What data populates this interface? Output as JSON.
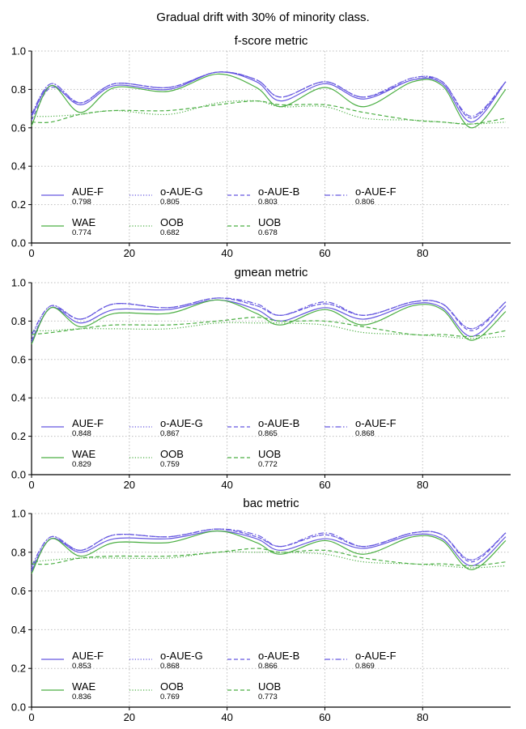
{
  "figure": {
    "suptitle": "Gradual drift with 30% of minority class."
  },
  "colors": {
    "aue": "#6658e0",
    "green": "#4caf44",
    "grid": "#bdbdbd"
  },
  "chart_data": [
    {
      "type": "line",
      "title": "f-score metric",
      "xlabel": "",
      "ylabel": "",
      "xlim": [
        0,
        98
      ],
      "ylim": [
        0,
        1
      ],
      "x_ticks": [
        "0",
        "20",
        "40",
        "60",
        "80"
      ],
      "y_ticks": [
        "0.0",
        "0.2",
        "0.4",
        "0.6",
        "0.8",
        "1.0"
      ],
      "grid": true,
      "legend_position": "lower-left",
      "x": [
        0,
        4,
        10,
        17,
        28,
        38,
        46,
        51,
        60,
        68,
        78,
        84,
        90,
        97
      ],
      "series": [
        {
          "name": "AUE-F",
          "score": "0.798",
          "color": "#6658e0",
          "dash": "solid",
          "values": [
            0.66,
            0.82,
            0.72,
            0.82,
            0.8,
            0.89,
            0.84,
            0.74,
            0.83,
            0.75,
            0.85,
            0.83,
            0.63,
            0.84
          ]
        },
        {
          "name": "o-AUE-G",
          "score": "0.805",
          "color": "#6658e0",
          "dash": "dotted",
          "values": [
            0.67,
            0.83,
            0.73,
            0.83,
            0.81,
            0.89,
            0.85,
            0.76,
            0.84,
            0.76,
            0.86,
            0.84,
            0.65,
            0.84
          ]
        },
        {
          "name": "o-AUE-B",
          "score": "0.803",
          "color": "#6658e0",
          "dash": "dashed",
          "values": [
            0.64,
            0.81,
            0.73,
            0.83,
            0.81,
            0.89,
            0.85,
            0.76,
            0.84,
            0.76,
            0.85,
            0.84,
            0.65,
            0.84
          ]
        },
        {
          "name": "o-AUE-F",
          "score": "0.806",
          "color": "#6658e0",
          "dash": "dashdot",
          "values": [
            0.67,
            0.83,
            0.73,
            0.83,
            0.81,
            0.89,
            0.85,
            0.76,
            0.84,
            0.76,
            0.86,
            0.84,
            0.66,
            0.84
          ]
        },
        {
          "name": "WAE",
          "score": "0.774",
          "color": "#4caf44",
          "dash": "solid",
          "values": [
            0.61,
            0.82,
            0.68,
            0.81,
            0.79,
            0.88,
            0.81,
            0.71,
            0.81,
            0.71,
            0.84,
            0.82,
            0.6,
            0.8
          ]
        },
        {
          "name": "OOB",
          "score": "0.682",
          "color": "#4caf44",
          "dash": "dotted",
          "values": [
            0.66,
            0.66,
            0.67,
            0.69,
            0.67,
            0.73,
            0.74,
            0.71,
            0.71,
            0.65,
            0.64,
            0.63,
            0.62,
            0.63
          ]
        },
        {
          "name": "UOB",
          "score": "0.678",
          "color": "#4caf44",
          "dash": "dashed",
          "values": [
            0.63,
            0.63,
            0.67,
            0.69,
            0.69,
            0.72,
            0.74,
            0.72,
            0.72,
            0.68,
            0.64,
            0.63,
            0.62,
            0.65
          ]
        }
      ]
    },
    {
      "type": "line",
      "title": "gmean metric",
      "xlabel": "",
      "ylabel": "",
      "xlim": [
        0,
        98
      ],
      "ylim": [
        0,
        1
      ],
      "x_ticks": [
        "0",
        "20",
        "40",
        "60",
        "80"
      ],
      "y_ticks": [
        "0.0",
        "0.2",
        "0.4",
        "0.6",
        "0.8",
        "1.0"
      ],
      "grid": true,
      "legend_position": "lower-left",
      "x": [
        0,
        4,
        10,
        17,
        28,
        38,
        46,
        51,
        60,
        68,
        78,
        84,
        90,
        97
      ],
      "series": [
        {
          "name": "AUE-F",
          "score": "0.848",
          "color": "#6658e0",
          "dash": "solid",
          "values": [
            0.69,
            0.87,
            0.79,
            0.86,
            0.86,
            0.91,
            0.86,
            0.8,
            0.87,
            0.81,
            0.89,
            0.87,
            0.72,
            0.88
          ]
        },
        {
          "name": "o-AUE-G",
          "score": "0.867",
          "color": "#6658e0",
          "dash": "dotted",
          "values": [
            0.72,
            0.88,
            0.81,
            0.89,
            0.87,
            0.92,
            0.88,
            0.83,
            0.89,
            0.83,
            0.9,
            0.89,
            0.76,
            0.9
          ]
        },
        {
          "name": "o-AUE-B",
          "score": "0.865",
          "color": "#6658e0",
          "dash": "dashed",
          "values": [
            0.7,
            0.87,
            0.81,
            0.89,
            0.87,
            0.92,
            0.88,
            0.83,
            0.89,
            0.83,
            0.9,
            0.89,
            0.75,
            0.9
          ]
        },
        {
          "name": "o-AUE-F",
          "score": "0.868",
          "color": "#6658e0",
          "dash": "dashdot",
          "values": [
            0.73,
            0.88,
            0.81,
            0.89,
            0.87,
            0.92,
            0.89,
            0.83,
            0.9,
            0.83,
            0.9,
            0.89,
            0.76,
            0.9
          ]
        },
        {
          "name": "WAE",
          "score": "0.829",
          "color": "#4caf44",
          "dash": "solid",
          "values": [
            0.68,
            0.87,
            0.77,
            0.84,
            0.84,
            0.91,
            0.84,
            0.78,
            0.86,
            0.78,
            0.88,
            0.86,
            0.7,
            0.85
          ]
        },
        {
          "name": "OOB",
          "score": "0.759",
          "color": "#4caf44",
          "dash": "dotted",
          "values": [
            0.75,
            0.75,
            0.76,
            0.76,
            0.76,
            0.79,
            0.79,
            0.79,
            0.78,
            0.74,
            0.73,
            0.72,
            0.71,
            0.72
          ]
        },
        {
          "name": "UOB",
          "score": "0.772",
          "color": "#4caf44",
          "dash": "dashed",
          "values": [
            0.73,
            0.74,
            0.76,
            0.78,
            0.78,
            0.8,
            0.82,
            0.8,
            0.8,
            0.77,
            0.73,
            0.73,
            0.72,
            0.75
          ]
        }
      ]
    },
    {
      "type": "line",
      "title": "bac metric",
      "xlabel": "",
      "ylabel": "",
      "xlim": [
        0,
        98
      ],
      "ylim": [
        0,
        1
      ],
      "x_ticks": [
        "0",
        "20",
        "40",
        "60",
        "80"
      ],
      "y_ticks": [
        "0.0",
        "0.2",
        "0.4",
        "0.6",
        "0.8",
        "1.0"
      ],
      "grid": true,
      "legend_position": "lower-left",
      "x": [
        0,
        4,
        10,
        17,
        28,
        38,
        46,
        51,
        60,
        68,
        78,
        84,
        90,
        97
      ],
      "series": [
        {
          "name": "AUE-F",
          "score": "0.853",
          "color": "#6658e0",
          "dash": "solid",
          "values": [
            0.7,
            0.87,
            0.8,
            0.87,
            0.87,
            0.91,
            0.87,
            0.81,
            0.87,
            0.82,
            0.89,
            0.87,
            0.73,
            0.88
          ]
        },
        {
          "name": "o-AUE-G",
          "score": "0.868",
          "color": "#6658e0",
          "dash": "dotted",
          "values": [
            0.72,
            0.88,
            0.81,
            0.89,
            0.88,
            0.92,
            0.88,
            0.83,
            0.89,
            0.83,
            0.9,
            0.89,
            0.76,
            0.9
          ]
        },
        {
          "name": "o-AUE-B",
          "score": "0.866",
          "color": "#6658e0",
          "dash": "dashed",
          "values": [
            0.71,
            0.87,
            0.81,
            0.89,
            0.88,
            0.92,
            0.88,
            0.83,
            0.89,
            0.83,
            0.9,
            0.89,
            0.75,
            0.9
          ]
        },
        {
          "name": "o-AUE-F",
          "score": "0.869",
          "color": "#6658e0",
          "dash": "dashdot",
          "values": [
            0.73,
            0.88,
            0.81,
            0.89,
            0.88,
            0.92,
            0.89,
            0.83,
            0.9,
            0.83,
            0.9,
            0.89,
            0.76,
            0.9
          ]
        },
        {
          "name": "WAE",
          "score": "0.836",
          "color": "#4caf44",
          "dash": "solid",
          "values": [
            0.69,
            0.87,
            0.78,
            0.85,
            0.85,
            0.91,
            0.85,
            0.79,
            0.86,
            0.79,
            0.88,
            0.86,
            0.71,
            0.86
          ]
        },
        {
          "name": "OOB",
          "score": "0.769",
          "color": "#4caf44",
          "dash": "dotted",
          "values": [
            0.75,
            0.76,
            0.77,
            0.77,
            0.77,
            0.8,
            0.8,
            0.8,
            0.79,
            0.75,
            0.74,
            0.73,
            0.72,
            0.73
          ]
        },
        {
          "name": "UOB",
          "score": "0.773",
          "color": "#4caf44",
          "dash": "dashed",
          "values": [
            0.74,
            0.74,
            0.77,
            0.78,
            0.78,
            0.8,
            0.82,
            0.8,
            0.81,
            0.77,
            0.74,
            0.74,
            0.73,
            0.75
          ]
        }
      ]
    }
  ]
}
